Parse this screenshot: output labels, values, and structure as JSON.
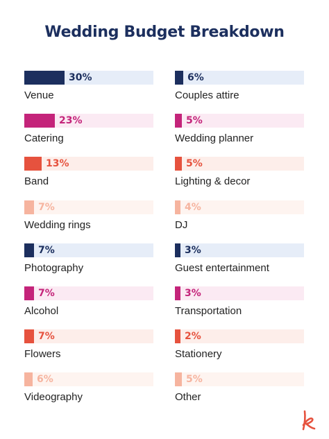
{
  "colors": {
    "navy": "#1c2f5e",
    "navy_track": "#e6edf8",
    "magenta": "#c4247a",
    "magenta_track": "#fbeaf3",
    "red": "#e6523e",
    "red_track": "#fdeeea",
    "peach": "#f6b49f",
    "peach_track": "#fef4f0",
    "logo": "#e6523e"
  },
  "chart_data": {
    "type": "bar",
    "orientation": "horizontal",
    "title": "Wedding Budget Breakdown",
    "scale_max": 30,
    "unit": "%",
    "items": [
      {
        "label": "Venue",
        "value": 30,
        "value_label": "30%",
        "color": "navy"
      },
      {
        "label": "Catering",
        "value": 23,
        "value_label": "23%",
        "color": "magenta"
      },
      {
        "label": "Band",
        "value": 13,
        "value_label": "13%",
        "color": "red"
      },
      {
        "label": "Wedding rings",
        "value": 7,
        "value_label": "7%",
        "color": "peach"
      },
      {
        "label": "Photography",
        "value": 7,
        "value_label": "7%",
        "color": "navy"
      },
      {
        "label": "Alcohol",
        "value": 7,
        "value_label": "7%",
        "color": "magenta"
      },
      {
        "label": "Flowers",
        "value": 7,
        "value_label": "7%",
        "color": "red"
      },
      {
        "label": "Videography",
        "value": 6,
        "value_label": "6%",
        "color": "peach"
      },
      {
        "label": "Couples attire",
        "value": 6,
        "value_label": "6%",
        "color": "navy"
      },
      {
        "label": "Wedding planner",
        "value": 5,
        "value_label": "5%",
        "color": "magenta"
      },
      {
        "label": "Lighting & decor",
        "value": 5,
        "value_label": "5%",
        "color": "red"
      },
      {
        "label": "DJ",
        "value": 4,
        "value_label": "4%",
        "color": "peach"
      },
      {
        "label": "Guest entertainment",
        "value": 3,
        "value_label": "3%",
        "color": "navy"
      },
      {
        "label": "Transportation",
        "value": 3,
        "value_label": "3%",
        "color": "magenta"
      },
      {
        "label": "Stationery",
        "value": 2,
        "value_label": "2%",
        "color": "red"
      },
      {
        "label": "Other",
        "value": 5,
        "value_label": "5%",
        "color": "peach"
      }
    ]
  },
  "logo": {
    "icon": "k-logo-icon"
  }
}
